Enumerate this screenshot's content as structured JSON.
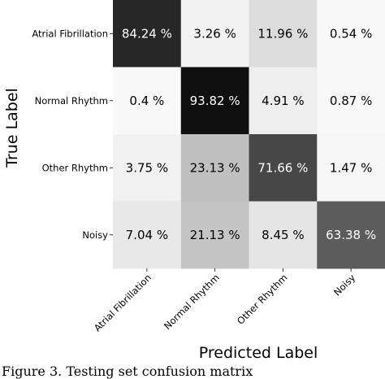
{
  "chart_data": {
    "type": "heatmap",
    "title": "",
    "xlabel": "Predicted Label",
    "ylabel": "True Label",
    "x_categories": [
      "Atrial Fibrillation",
      "Normal Rhythm",
      "Other Rhythm",
      "Noisy"
    ],
    "y_categories": [
      "Atrial Fibrillation",
      "Normal Rhythm",
      "Other Rhythm",
      "Noisy"
    ],
    "values": [
      [
        84.24,
        3.26,
        11.96,
        0.54
      ],
      [
        0.4,
        93.82,
        4.91,
        0.87
      ],
      [
        3.75,
        23.13,
        71.66,
        1.47
      ],
      [
        7.04,
        21.13,
        8.45,
        63.38
      ]
    ],
    "cell_labels": [
      [
        "84.24 %",
        "3.26 %",
        "11.96 %",
        "0.54 %"
      ],
      [
        "0.4 %",
        "93.82 %",
        "4.91 %",
        "0.87 %"
      ],
      [
        "3.75 %",
        "23.13 %",
        "71.66 %",
        "1.47 %"
      ],
      [
        "7.04 %",
        "21.13 %",
        "8.45 %",
        "63.38 %"
      ]
    ],
    "colormap": "greys",
    "value_range": [
      0,
      100
    ]
  },
  "caption": "Figure 3. Testing set confusion matrix"
}
